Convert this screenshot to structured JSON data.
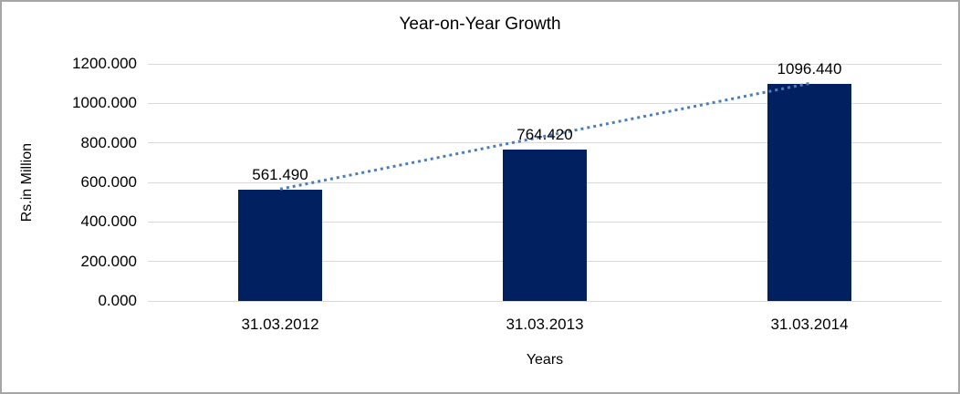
{
  "chart_data": {
    "type": "bar",
    "title": "Year-on-Year Growth",
    "xlabel": "Years",
    "ylabel": "Rs.in Million",
    "categories": [
      "31.03.2012",
      "31.03.2013",
      "31.03.2014"
    ],
    "values": [
      561.49,
      764.42,
      1096.44
    ],
    "data_labels": [
      "561.490",
      "764.420",
      "1096.440"
    ],
    "ylim": [
      0,
      1200
    ],
    "ytick_step": 200,
    "ytick_labels": [
      "0.000",
      "200.000",
      "400.000",
      "600.000",
      "800.000",
      "1000.000",
      "1200.000"
    ],
    "grid": true,
    "legend": "none",
    "trendline": {
      "style": "dotted",
      "from_category": "31.03.2012",
      "to_category": "31.03.2014"
    },
    "colors": {
      "bar": "#002060",
      "trendline": "#4a7ebb",
      "gridline": "#d9d9d9",
      "border": "#a6a6a6",
      "text": "#000000"
    }
  }
}
